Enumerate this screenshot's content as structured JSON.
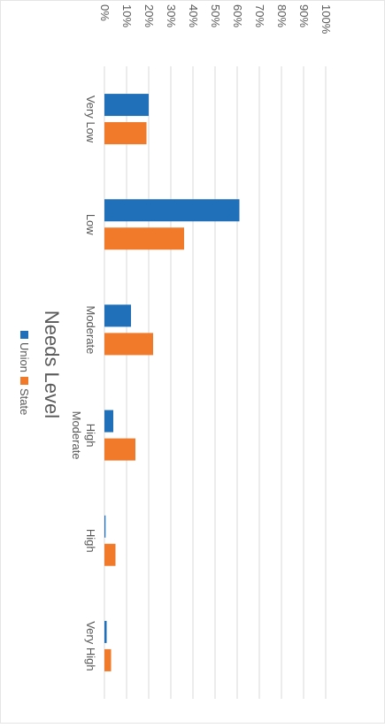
{
  "chart_data": {
    "type": "bar",
    "title": "Needs Level",
    "orientation": "vertical",
    "rotated": "90deg-clockwise",
    "categories": [
      "Very Low",
      "Low",
      "Moderate",
      "High Moderate",
      "High",
      "Very High"
    ],
    "category_label_lines": [
      [
        "Very Low"
      ],
      [
        "Low"
      ],
      [
        "Moderate"
      ],
      [
        "High",
        "Moderate"
      ],
      [
        "High"
      ],
      [
        "Very High"
      ]
    ],
    "series": [
      {
        "name": "Union",
        "color": "#1f6fb9",
        "values": [
          20,
          61,
          12,
          4,
          0.5,
          1
        ]
      },
      {
        "name": "State",
        "color": "#f07a2a",
        "values": [
          19,
          36,
          22,
          14,
          5,
          3
        ]
      }
    ],
    "ylim": [
      0,
      100
    ],
    "y_ticks": [
      0,
      10,
      20,
      30,
      40,
      50,
      60,
      70,
      80,
      90,
      100
    ],
    "y_tick_labels": [
      "0%",
      "10%",
      "20%",
      "30%",
      "40%",
      "50%",
      "60%",
      "70%",
      "80%",
      "90%",
      "100%"
    ],
    "grid": true,
    "legend_position": "bottom"
  }
}
